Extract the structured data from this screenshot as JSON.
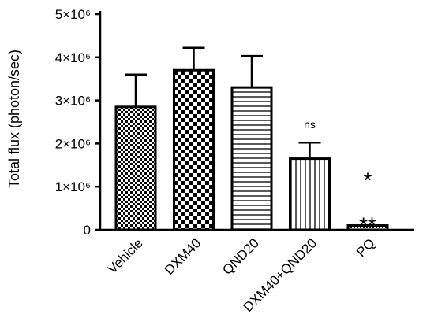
{
  "chart_data": {
    "type": "bar",
    "title": "",
    "xlabel": "",
    "ylabel": "Total flux (photon/sec)",
    "ylim": [
      0,
      5000000
    ],
    "yticks": [
      {
        "value": 0,
        "label": "0"
      },
      {
        "value": 1000000,
        "label": "1×10⁶"
      },
      {
        "value": 2000000,
        "label": "2×10⁶"
      },
      {
        "value": 3000000,
        "label": "3×10⁶"
      },
      {
        "value": 4000000,
        "label": "4×10⁶"
      },
      {
        "value": 5000000,
        "label": "5×10⁶"
      }
    ],
    "categories": [
      "Vehicle",
      "DXM40",
      "QND20",
      "DXM40+QND20",
      "PQ"
    ],
    "values": [
      2850000,
      3700000,
      3300000,
      1650000,
      100000
    ],
    "error_upper": [
      3600000,
      4220000,
      4030000,
      2020000,
      100000
    ],
    "fill_patterns": [
      "small-checker",
      "large-checker",
      "horizontal-lines",
      "vertical-lines",
      "dots"
    ],
    "annotations": [
      {
        "category": "DXM40+QND20",
        "text": "ns",
        "value": 2350000
      },
      {
        "category": "PQ",
        "text": "*",
        "value": 1230000
      },
      {
        "category": "PQ",
        "text": "**",
        "value": 190000
      }
    ],
    "grid": false,
    "legend": "none"
  }
}
